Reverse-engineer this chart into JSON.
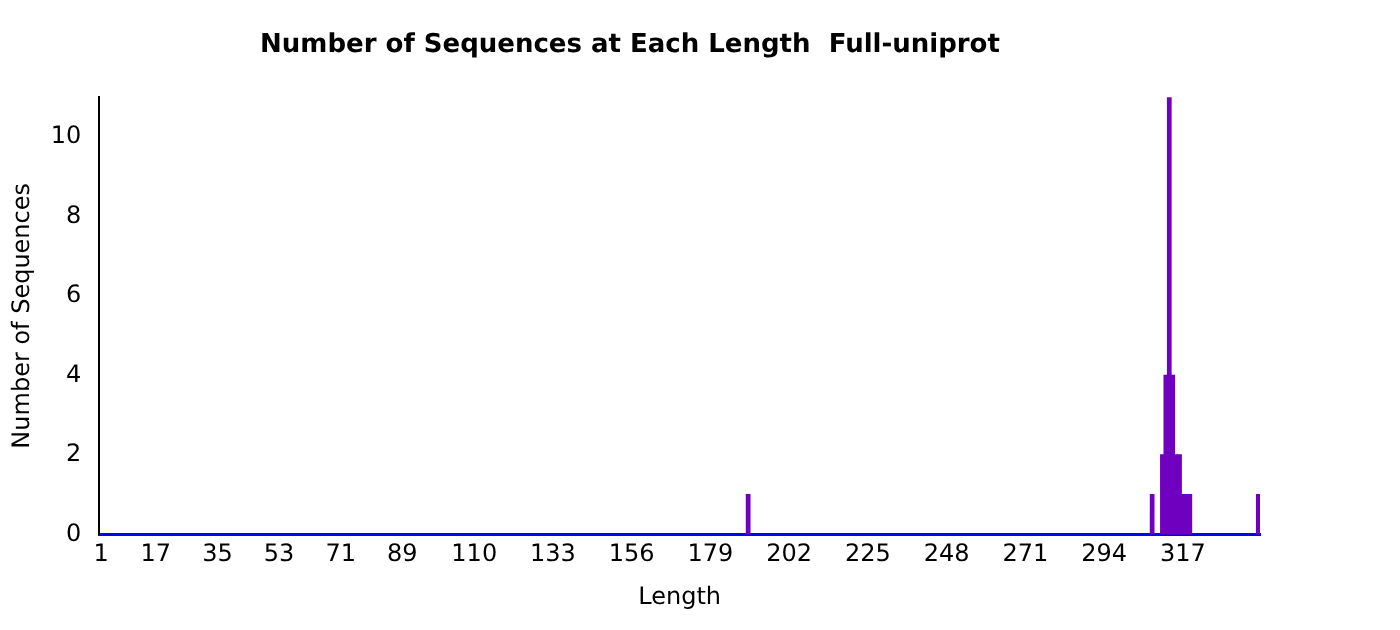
{
  "chart_data": {
    "type": "bar",
    "title": "Number of Sequences at Each Length  Full-uniprot",
    "xlabel": "Length",
    "ylabel": "Number of Sequences",
    "x": [
      190,
      308,
      311,
      312,
      313,
      314,
      315,
      316,
      317,
      318,
      319,
      339
    ],
    "values": [
      1,
      1,
      2,
      4,
      11,
      4,
      2,
      2,
      1,
      1,
      1,
      1
    ],
    "color": "#7000c0",
    "xlim": [
      0.5,
      339.5
    ],
    "xticks": [
      1,
      17,
      35,
      53,
      71,
      89,
      110,
      133,
      156,
      179,
      202,
      225,
      248,
      271,
      294,
      317
    ],
    "ylim": [
      0,
      11
    ],
    "yticks": [
      0,
      2,
      4,
      6,
      8,
      10
    ],
    "grid": false,
    "legend": false
  }
}
